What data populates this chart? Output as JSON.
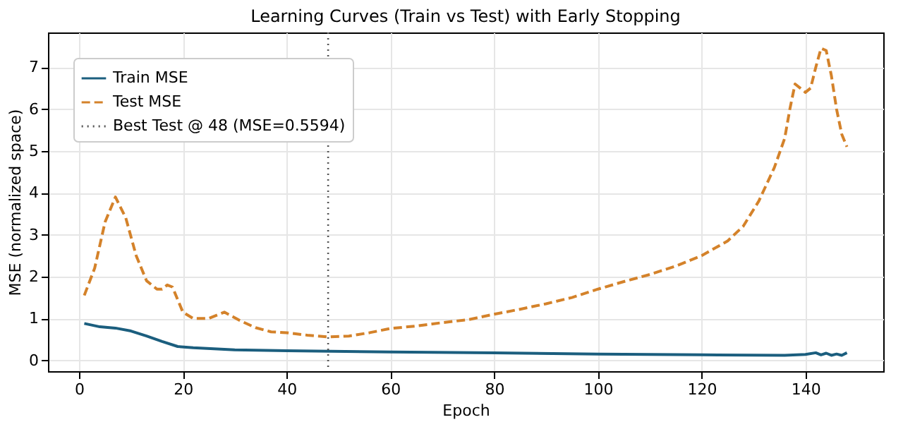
{
  "chart_data": {
    "type": "line",
    "title": "Learning Curves (Train vs Test) with Early Stopping",
    "xlabel": "Epoch",
    "ylabel": "MSE (normalized space)",
    "xlim": [
      -6,
      155
    ],
    "xticks": [
      0,
      20,
      40,
      60,
      80,
      100,
      120,
      140
    ],
    "ylim": [
      -0.26,
      7.83
    ],
    "yticks": [
      0,
      1,
      2,
      3,
      4,
      5,
      6,
      7
    ],
    "grid": true,
    "legend": "top left",
    "series": [
      {
        "name": "Train MSE",
        "color": "#1b5e7e",
        "line_style": "solid",
        "x": [
          1,
          4,
          7,
          10,
          13,
          16,
          19,
          22,
          30,
          40,
          60,
          80,
          100,
          120,
          136,
          140,
          142,
          143,
          144,
          145,
          146,
          147,
          148
        ],
        "values": [
          0.88,
          0.8,
          0.77,
          0.7,
          0.58,
          0.45,
          0.33,
          0.3,
          0.25,
          0.23,
          0.2,
          0.18,
          0.15,
          0.13,
          0.12,
          0.14,
          0.18,
          0.13,
          0.17,
          0.12,
          0.15,
          0.12,
          0.18
        ]
      },
      {
        "name": "Test MSE",
        "color": "#d4822a",
        "line_style": "dashed",
        "x": [
          1,
          3,
          5,
          7,
          9,
          11,
          13,
          15,
          16,
          17,
          18,
          20,
          22,
          25,
          28,
          31,
          34,
          37,
          40,
          44,
          48,
          52,
          56,
          60,
          65,
          70,
          75,
          80,
          85,
          90,
          95,
          100,
          105,
          110,
          115,
          120,
          125,
          128,
          131,
          134,
          136,
          137,
          138,
          139,
          140,
          141,
          142,
          143,
          144,
          145,
          146,
          147,
          148
        ],
        "values": [
          1.55,
          2.2,
          3.3,
          3.9,
          3.4,
          2.5,
          1.9,
          1.7,
          1.7,
          1.8,
          1.75,
          1.15,
          1.0,
          1.0,
          1.15,
          0.95,
          0.78,
          0.68,
          0.66,
          0.6,
          0.56,
          0.58,
          0.66,
          0.76,
          0.82,
          0.9,
          0.97,
          1.1,
          1.22,
          1.35,
          1.5,
          1.7,
          1.88,
          2.05,
          2.25,
          2.5,
          2.85,
          3.2,
          3.8,
          4.6,
          5.3,
          6.0,
          6.6,
          6.5,
          6.4,
          6.5,
          7.0,
          7.45,
          7.4,
          6.8,
          6.0,
          5.4,
          5.1
        ]
      }
    ],
    "ref_lines": [
      {
        "axis": "x",
        "value": 48,
        "label": "Best Test @ 48 (MSE=0.5594)",
        "color": "#555555",
        "line_style": "dotted"
      }
    ]
  }
}
